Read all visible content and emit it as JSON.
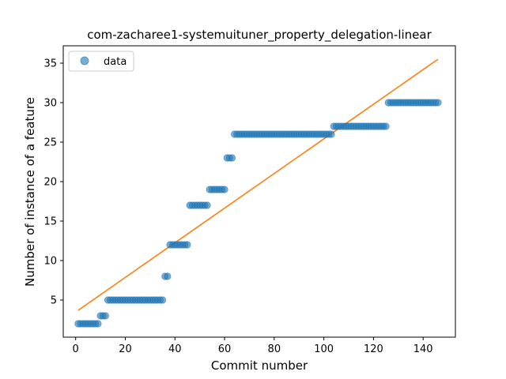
{
  "chart_data": {
    "type": "scatter",
    "title": "com-zacharee1-systemuituner_property_delegation-linear",
    "xlabel": "Commit number",
    "ylabel": "Number of instance of a feature",
    "xlim": [
      -5,
      153
    ],
    "ylim": [
      0.3,
      37.2
    ],
    "xticks": [
      0,
      20,
      40,
      60,
      80,
      100,
      120,
      140
    ],
    "yticks": [
      5,
      10,
      15,
      20,
      25,
      30,
      35
    ],
    "grid": false,
    "legend": {
      "placement": "top-left",
      "entries": [
        "data"
      ]
    },
    "colors": {
      "data": "#1f77b4",
      "fit": "#ff7f0e"
    },
    "series": [
      {
        "name": "data",
        "kind": "scatter",
        "x": [
          1,
          2,
          3,
          4,
          5,
          6,
          7,
          8,
          9,
          10,
          11,
          12,
          13,
          14,
          15,
          16,
          17,
          18,
          19,
          20,
          21,
          22,
          23,
          24,
          25,
          26,
          27,
          28,
          29,
          30,
          31,
          32,
          33,
          34,
          35,
          36,
          37,
          38,
          39,
          40,
          41,
          42,
          43,
          44,
          45,
          46,
          47,
          48,
          49,
          50,
          51,
          52,
          53,
          54,
          55,
          56,
          57,
          58,
          59,
          60,
          61,
          62,
          63,
          64,
          65,
          66,
          67,
          68,
          69,
          70,
          71,
          72,
          73,
          74,
          75,
          76,
          77,
          78,
          79,
          80,
          81,
          82,
          83,
          84,
          85,
          86,
          87,
          88,
          89,
          90,
          91,
          92,
          93,
          94,
          95,
          96,
          97,
          98,
          99,
          100,
          101,
          102,
          103,
          104,
          105,
          106,
          107,
          108,
          109,
          110,
          111,
          112,
          113,
          114,
          115,
          116,
          117,
          118,
          119,
          120,
          121,
          122,
          123,
          124,
          125,
          126,
          127,
          128,
          129,
          130,
          131,
          132,
          133,
          134,
          135,
          136,
          137,
          138,
          139,
          140,
          141,
          142,
          143,
          144,
          145,
          146
        ],
        "y": [
          2,
          2,
          2,
          2,
          2,
          2,
          2,
          2,
          2,
          3,
          3,
          3,
          5,
          5,
          5,
          5,
          5,
          5,
          5,
          5,
          5,
          5,
          5,
          5,
          5,
          5,
          5,
          5,
          5,
          5,
          5,
          5,
          5,
          5,
          5,
          8,
          8,
          12,
          12,
          12,
          12,
          12,
          12,
          12,
          12,
          17,
          17,
          17,
          17,
          17,
          17,
          17,
          17,
          19,
          19,
          19,
          19,
          19,
          19,
          19,
          23,
          23,
          23,
          26,
          26,
          26,
          26,
          26,
          26,
          26,
          26,
          26,
          26,
          26,
          26,
          26,
          26,
          26,
          26,
          26,
          26,
          26,
          26,
          26,
          26,
          26,
          26,
          26,
          26,
          26,
          26,
          26,
          26,
          26,
          26,
          26,
          26,
          26,
          26,
          26,
          26,
          26,
          26,
          27,
          27,
          27,
          27,
          27,
          27,
          27,
          27,
          27,
          27,
          27,
          27,
          27,
          27,
          27,
          27,
          27,
          27,
          27,
          27,
          27,
          27,
          30,
          30,
          30,
          30,
          30,
          30,
          30,
          30,
          30,
          30,
          30,
          30,
          30,
          30,
          30,
          30,
          30,
          30,
          30,
          30,
          30
        ]
      },
      {
        "kind": "line",
        "x": [
          1,
          146
        ],
        "y": [
          3.7,
          35.5
        ]
      }
    ]
  }
}
